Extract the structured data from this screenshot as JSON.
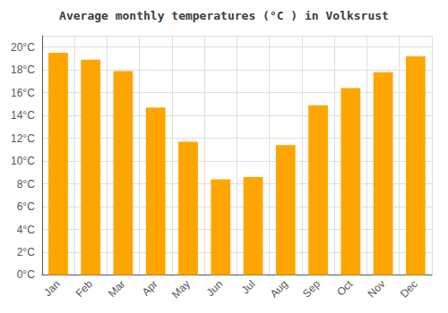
{
  "chart_data": {
    "type": "bar",
    "title": "Average monthly temperatures (°C ) in Volksrust",
    "categories": [
      "Jan",
      "Feb",
      "Mar",
      "Apr",
      "May",
      "Jun",
      "Jul",
      "Aug",
      "Sep",
      "Oct",
      "Nov",
      "Dec"
    ],
    "values": [
      19.5,
      18.9,
      17.9,
      14.7,
      11.7,
      8.4,
      8.6,
      11.4,
      14.9,
      16.4,
      17.8,
      19.2
    ],
    "color": "#FFA500",
    "ylim": [
      0,
      21
    ],
    "yticks": [
      {
        "value": 0,
        "label": "0°C"
      },
      {
        "value": 2,
        "label": "2°C"
      },
      {
        "value": 4,
        "label": "4°C"
      },
      {
        "value": 6,
        "label": "6°C"
      },
      {
        "value": 8,
        "label": "8°C"
      },
      {
        "value": 10,
        "label": "10°C"
      },
      {
        "value": 12,
        "label": "12°C"
      },
      {
        "value": 14,
        "label": "14°C"
      },
      {
        "value": 16,
        "label": "16°C"
      },
      {
        "value": 18,
        "label": "18°C"
      },
      {
        "value": 20,
        "label": "20°C"
      }
    ],
    "grid": true
  }
}
